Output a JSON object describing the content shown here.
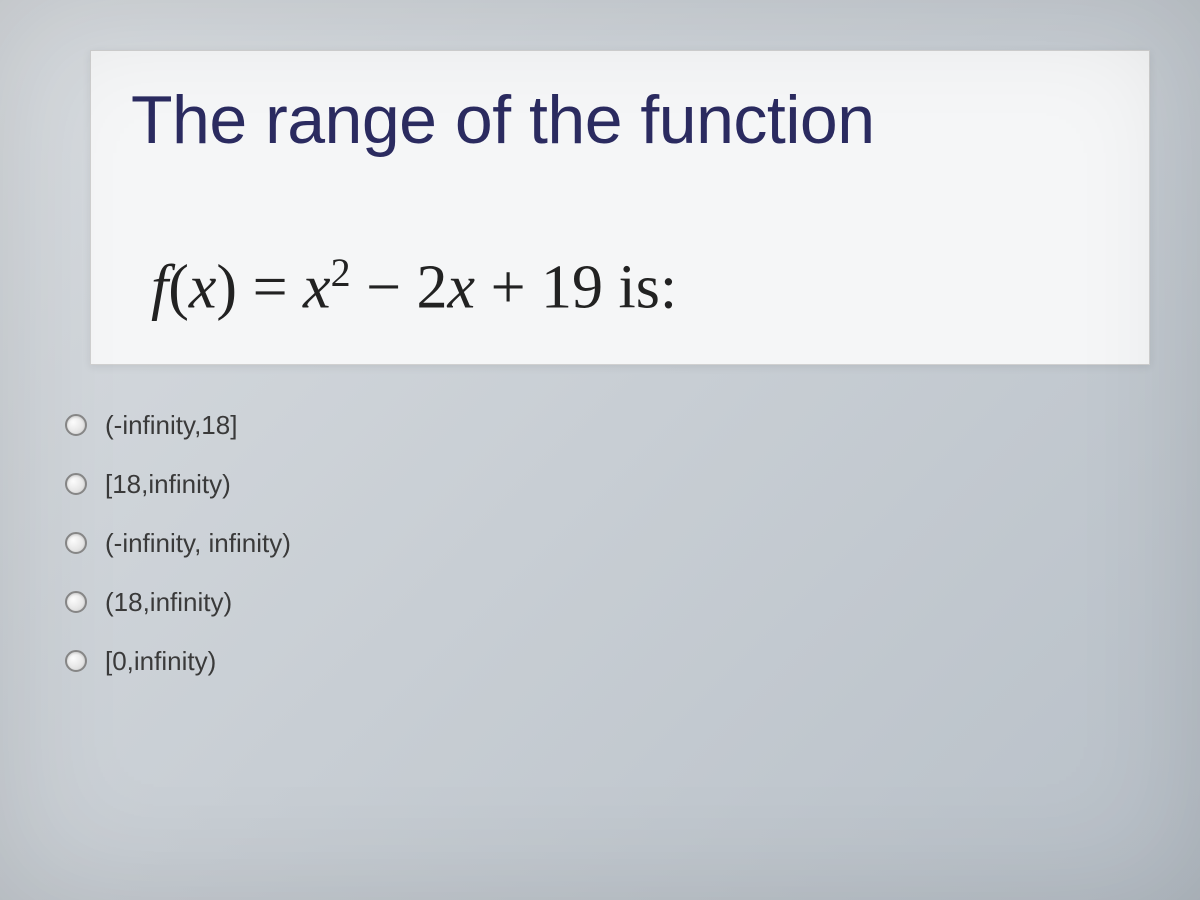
{
  "question": {
    "title": "The range of the function",
    "equation_html": "<span class='fn'>f</span><span class='normal'>(</span><span class='fn'>x</span><span class='normal'>)</span> <span class='normal'>=</span> <span class='fn'>x</span><sup>2</sup> <span class='normal'>−</span> <span class='normal'>2</span><span class='fn'>x</span> <span class='normal'>+</span> <span class='normal'>19</span> <span class='normal'>is:</span>",
    "title_color": "#2b2b60",
    "title_fontsize": 68,
    "equation_fontsize": 62,
    "box_background": "#f5f6f7",
    "box_border": "#d0d0d0"
  },
  "options": [
    {
      "label": "(-infinity,18]"
    },
    {
      "label": "[18,infinity)"
    },
    {
      "label": "(-infinity, infinity)"
    },
    {
      "label": "(18,infinity)"
    },
    {
      "label": "[0,infinity)"
    }
  ],
  "styling": {
    "body_background_gradient": [
      "#d8dce0",
      "#c8ced4",
      "#b8c0c8"
    ],
    "option_fontsize": 26,
    "option_color": "#3a3a3a",
    "radio_border": "#888",
    "radio_size": 22
  }
}
